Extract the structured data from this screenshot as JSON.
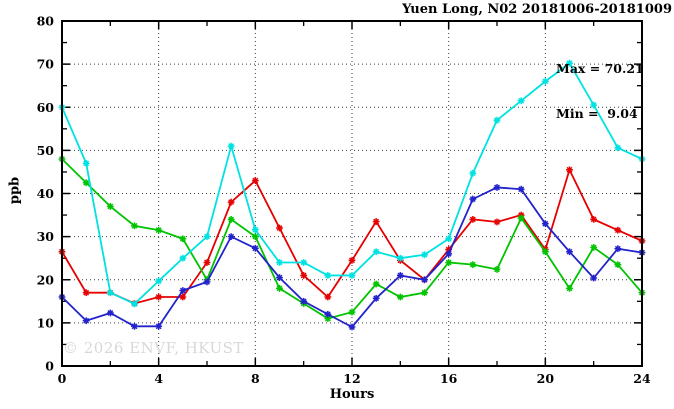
{
  "title": "Yuen Long, N02 20181006-20181009",
  "annotation": {
    "max_label": "Max = 70.21",
    "min_label": "Min =  9.04"
  },
  "watermark": "© 2026 ENVF, HKUST",
  "chart_data": {
    "type": "line",
    "title": "Yuen Long, N02 20181006-20181009",
    "xlabel": "Hours",
    "ylabel": "ppb",
    "xlim": [
      0,
      24
    ],
    "ylim": [
      0,
      80
    ],
    "x_major_ticks": [
      0,
      4,
      8,
      12,
      16,
      20,
      24
    ],
    "x_minor_ticks": [
      2,
      6,
      10,
      14,
      18,
      22
    ],
    "y_major_ticks": [
      0,
      10,
      20,
      30,
      40,
      50,
      60,
      70,
      80
    ],
    "y_minor_ticks": [
      5,
      15,
      25,
      35,
      45,
      55,
      65,
      75
    ],
    "grid_x": [
      4,
      8,
      12,
      16,
      20
    ],
    "grid_y": [
      10,
      20,
      30,
      40,
      50,
      60,
      70
    ],
    "grid_style": "dotted",
    "legend": "none",
    "marker": "star",
    "max_value": 70.21,
    "min_value": 9.04,
    "x": [
      0,
      1,
      2,
      3,
      4,
      5,
      6,
      7,
      8,
      9,
      10,
      11,
      12,
      13,
      14,
      15,
      16,
      17,
      18,
      19,
      20,
      21,
      22,
      23,
      24
    ],
    "series": [
      {
        "name": "red",
        "color": "#e60000",
        "values": [
          26.5,
          17,
          17,
          14.5,
          16,
          16,
          24,
          38,
          43,
          32,
          21,
          16,
          24.5,
          33.5,
          24.5,
          20,
          27,
          34,
          33.4,
          35,
          27,
          45.5,
          34,
          31.5,
          29
        ]
      },
      {
        "name": "green",
        "color": "#00c400",
        "values": [
          48,
          42.5,
          37,
          32.5,
          31.5,
          29.5,
          20,
          34,
          30,
          18,
          14.5,
          11,
          12.5,
          19,
          16,
          17,
          24,
          23.5,
          22.4,
          34.3,
          26.5,
          18,
          27.5,
          23.5,
          17
        ]
      },
      {
        "name": "blue",
        "color": "#2323cc",
        "values": [
          16,
          10.5,
          12.3,
          9.2,
          9.2,
          17.5,
          19.5,
          30,
          27.3,
          20.5,
          15,
          12,
          9.04,
          15.7,
          21,
          20,
          26,
          38.7,
          41.4,
          41,
          33,
          26.5,
          20.4,
          27.2,
          26.3
        ]
      },
      {
        "name": "cyan",
        "color": "#00e2e2",
        "values": [
          60,
          47,
          17,
          14.4,
          19.7,
          25,
          30,
          51,
          31.6,
          24,
          24,
          21,
          21,
          26.5,
          25,
          25.8,
          29.5,
          44.7,
          57,
          61.5,
          66,
          70.21,
          60.5,
          50.6,
          48
        ]
      }
    ]
  }
}
